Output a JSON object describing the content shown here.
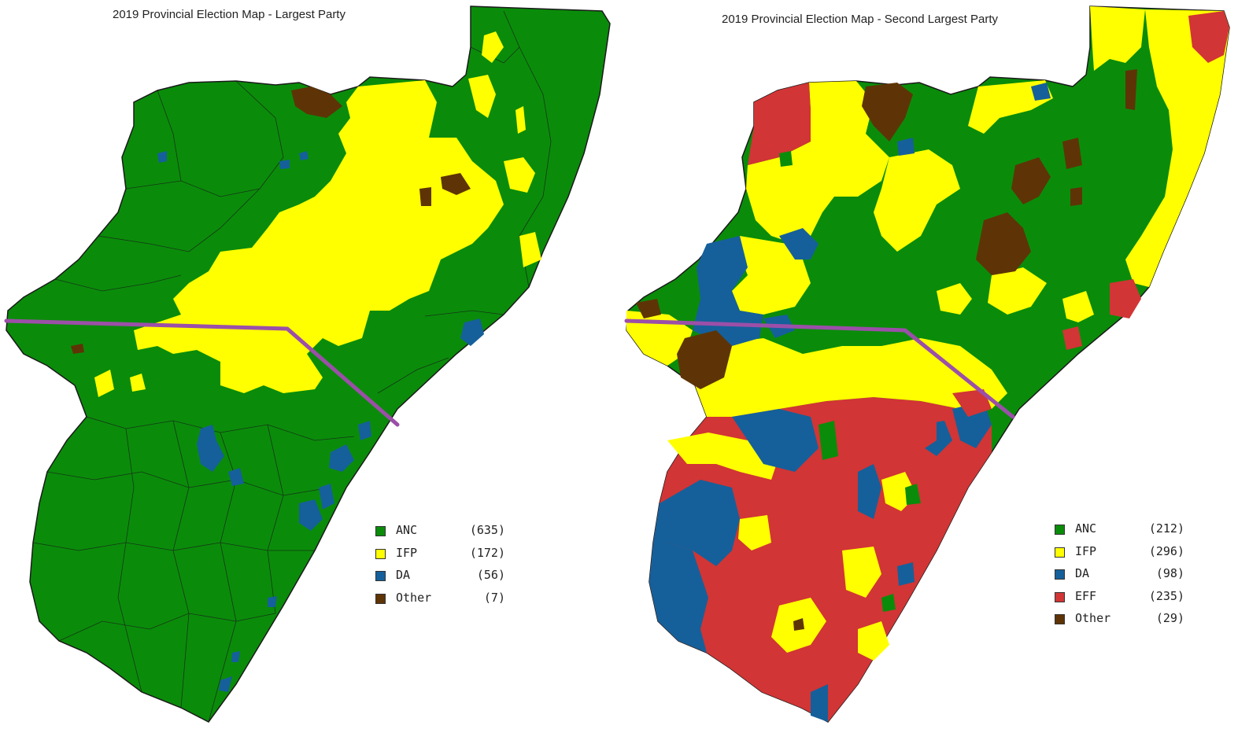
{
  "colors": {
    "ANC": "#0a8c0a",
    "IFP": "#ffff00",
    "DA": "#15609a",
    "EFF": "#d13535",
    "Other": "#5e3406",
    "divider": "#9b4fa8",
    "boundary": "#1a1a1a"
  },
  "maps": [
    {
      "title": "2019 Provincial Election Map - Largest Party",
      "legend": [
        {
          "party": "ANC",
          "count": "(635)",
          "color_key": "ANC"
        },
        {
          "party": "IFP",
          "count": "(172)",
          "color_key": "IFP"
        },
        {
          "party": "DA",
          "count": "(56)",
          "color_key": "DA"
        },
        {
          "party": "Other",
          "count": "(7)",
          "color_key": "Other"
        }
      ]
    },
    {
      "title": "2019 Provincial Election Map - Second Largest Party",
      "legend": [
        {
          "party": "ANC",
          "count": "(212)",
          "color_key": "ANC"
        },
        {
          "party": "IFP",
          "count": "(296)",
          "color_key": "IFP"
        },
        {
          "party": "DA",
          "count": "(98)",
          "color_key": "DA"
        },
        {
          "party": "EFF",
          "count": "(235)",
          "color_key": "EFF"
        },
        {
          "party": "Other",
          "count": "(29)",
          "color_key": "Other"
        }
      ]
    }
  ]
}
